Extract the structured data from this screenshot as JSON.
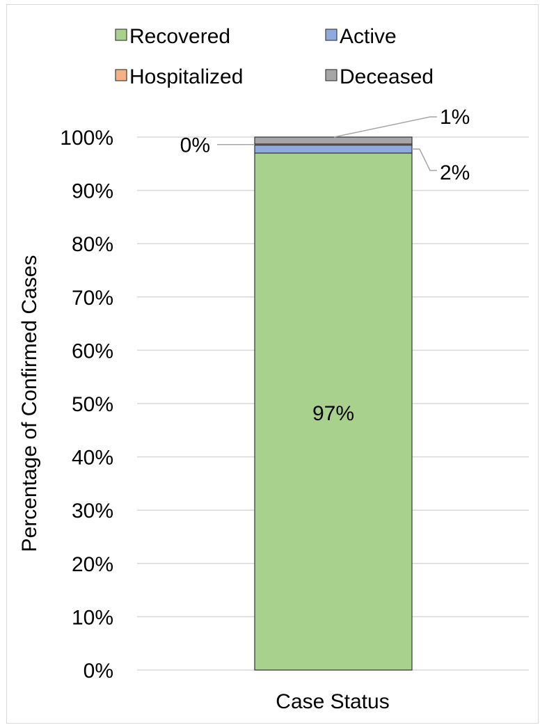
{
  "chart_data": {
    "type": "bar",
    "stacked": true,
    "categories": [
      "Case Status"
    ],
    "xlabel": "Case Status",
    "ylabel": "Percentage of Confirmed Cases",
    "ylim": [
      0,
      100
    ],
    "y_ticks": [
      "0%",
      "10%",
      "20%",
      "30%",
      "40%",
      "50%",
      "60%",
      "70%",
      "80%",
      "90%",
      "100%"
    ],
    "grid": true,
    "legend_position": "top",
    "series": [
      {
        "name": "Recovered",
        "values": [
          97
        ],
        "label": "97%",
        "color": "#a9d18e"
      },
      {
        "name": "Active",
        "values": [
          1.5
        ],
        "label": "2%",
        "color": "#8faadc"
      },
      {
        "name": "Hospitalized",
        "values": [
          0.2
        ],
        "label": "0%",
        "color": "#f4b183"
      },
      {
        "name": "Deceased",
        "values": [
          1.3
        ],
        "label": "1%",
        "color": "#a6a6a6"
      }
    ]
  }
}
